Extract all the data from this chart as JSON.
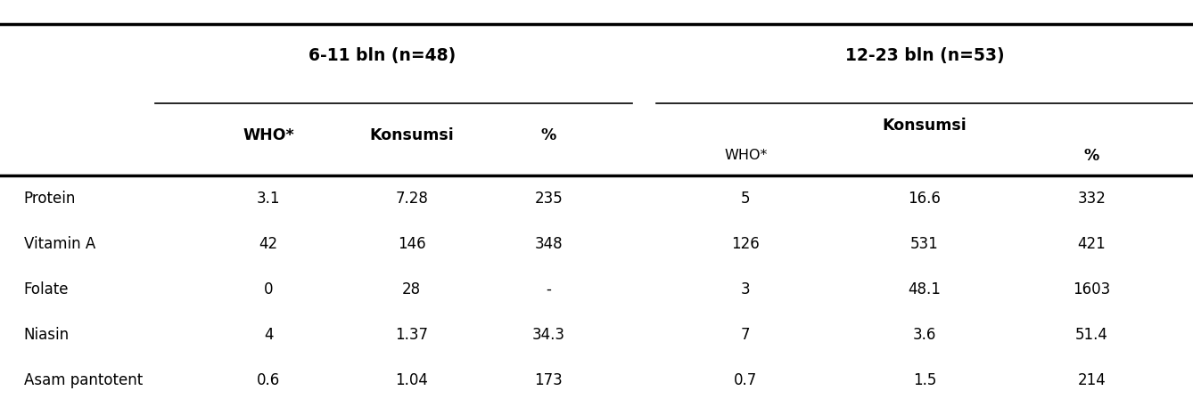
{
  "group1_label": "6-11 bln (n=48)",
  "group2_label": "12-23 bln (n=53)",
  "col_headers_group1": [
    "WHO*",
    "Konsumsi",
    "%"
  ],
  "col_headers_group2_top": "Konsumsi",
  "col_headers_group2": [
    "WHO*",
    "Konsumsi",
    "%"
  ],
  "row_labels": [
    "Protein",
    "Vitamin A",
    "Folate",
    "Niasin",
    "Asam pantotent"
  ],
  "data": [
    [
      "3.1",
      "7.28",
      "235",
      "5",
      "16.6",
      "332"
    ],
    [
      "42",
      "146",
      "348",
      "126",
      "531",
      "421"
    ],
    [
      "0",
      "28",
      "-",
      "3",
      "48.1",
      "1603"
    ],
    [
      "4",
      "1.37",
      "34.3",
      "7",
      "3.6",
      "51.4"
    ],
    [
      "0.6",
      "1.04",
      "173",
      "0.7",
      "1.5",
      "214"
    ]
  ],
  "background_color": "#ffffff",
  "text_color": "#000000",
  "font_size": 12,
  "header_font_size": 12.5,
  "group_font_size": 13.5
}
